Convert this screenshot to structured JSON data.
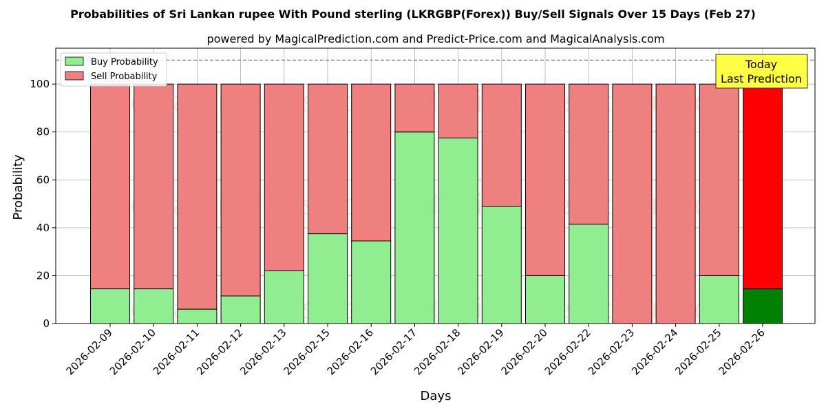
{
  "chart_data": {
    "type": "bar",
    "stacked": true,
    "title": "Probabilities of Sri Lankan rupee With Pound sterling (LKRGBP(Forex)) Buy/Sell Signals Over 15 Days (Feb 27)",
    "subtitle": "powered by MagicalPrediction.com and Predict-Price.com and MagicalAnalysis.com",
    "xlabel": "Days",
    "ylabel": "Probability",
    "ylim": [
      0,
      115
    ],
    "yticks": [
      0,
      20,
      40,
      60,
      80,
      100
    ],
    "grid": true,
    "legend_position": "top-left",
    "reference_line": 110,
    "categories": [
      "2026-02-09",
      "2026-02-10",
      "2026-02-11",
      "2026-02-12",
      "2026-02-13",
      "2026-02-15",
      "2026-02-16",
      "2026-02-17",
      "2026-02-18",
      "2026-02-19",
      "2026-02-20",
      "2026-02-22",
      "2026-02-23",
      "2026-02-24",
      "2026-02-25",
      "2026-02-26"
    ],
    "series": [
      {
        "name": "Buy Probability",
        "color": "#90ee90",
        "values": [
          14.5,
          14.5,
          6,
          11.5,
          22,
          37.5,
          34.5,
          80,
          77.5,
          49,
          20,
          41.5,
          0,
          0,
          20,
          14.5
        ]
      },
      {
        "name": "Sell Probability",
        "color": "#f08080",
        "values": [
          85.5,
          85.5,
          94,
          88.5,
          78,
          62.5,
          65.5,
          20,
          22.5,
          51,
          80,
          58.5,
          100,
          100,
          80,
          85.5
        ]
      }
    ],
    "highlight": {
      "index": 15,
      "buy_color": "#008000",
      "sell_color": "#ff0000"
    },
    "annotation": {
      "text_line1": "Today",
      "text_line2": "Last Prediction",
      "background": "#ffff44"
    },
    "watermarks": [
      "MagicalAnalysis.com",
      "MagicalPrediction.com"
    ]
  }
}
